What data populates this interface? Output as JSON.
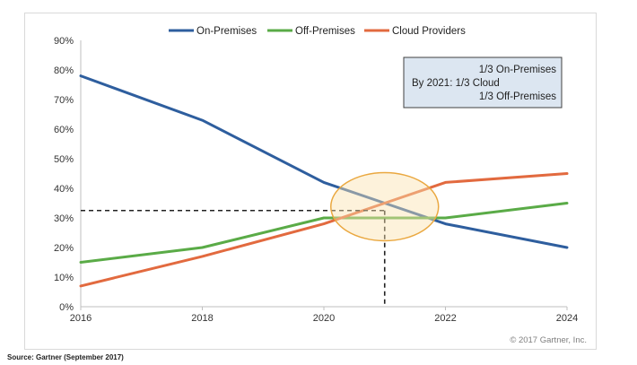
{
  "chart_data": {
    "type": "line",
    "x": [
      2016,
      2018,
      2020,
      2021,
      2022,
      2024
    ],
    "series": [
      {
        "name": "On-Premises",
        "color": "#2e5e9e",
        "values": [
          78,
          63,
          42,
          35,
          28,
          20
        ]
      },
      {
        "name": "Off-Premises",
        "color": "#5aab47",
        "values": [
          15,
          20,
          30,
          30,
          30,
          35
        ]
      },
      {
        "name": "Cloud Providers",
        "color": "#e26a3f",
        "values": [
          7,
          17,
          28,
          35,
          42,
          45
        ]
      }
    ],
    "xticks": [
      "2016",
      "2018",
      "2020",
      "2022",
      "2024"
    ],
    "xlim": [
      2016,
      2024
    ],
    "ylim": [
      0,
      90
    ],
    "yticks": [
      "0%",
      "10%",
      "20%",
      "30%",
      "40%",
      "50%",
      "60%",
      "70%",
      "80%",
      "90%"
    ],
    "legend_position": "top",
    "grid": false,
    "annotation": {
      "lines": [
        "1/3 On-Premises",
        "By 2021:  1/3 Cloud",
        "1/3 Off-Premises"
      ],
      "crossing_year": 2021,
      "crossing_value": 32.5
    },
    "copyright": "© 2017 Gartner, Inc."
  },
  "source": "Source: Gartner (September 2017)"
}
